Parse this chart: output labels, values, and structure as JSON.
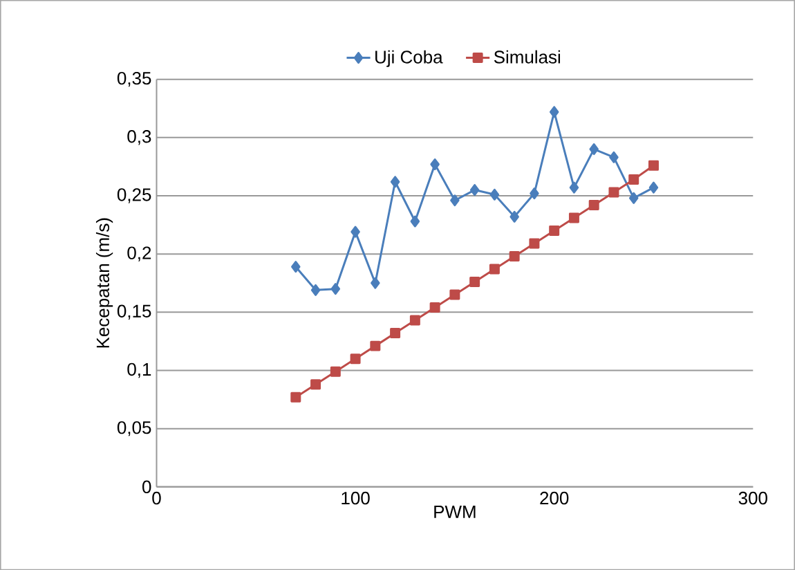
{
  "chart_data": {
    "type": "line",
    "xlabel": "PWM",
    "ylabel": "Kecepatan (m/s)",
    "xlim": [
      0,
      300
    ],
    "xticks": [
      0,
      100,
      200,
      300
    ],
    "ylim": [
      0,
      0.35
    ],
    "yticks": [
      {
        "value": 0,
        "label": "0"
      },
      {
        "value": 0.05,
        "label": "0,05"
      },
      {
        "value": 0.1,
        "label": "0,1"
      },
      {
        "value": 0.15,
        "label": "0,15"
      },
      {
        "value": 0.2,
        "label": "0,2"
      },
      {
        "value": 0.25,
        "label": "0,25"
      },
      {
        "value": 0.3,
        "label": "0,3"
      },
      {
        "value": 0.35,
        "label": "0,35"
      }
    ],
    "x": [
      70,
      80,
      90,
      100,
      110,
      120,
      130,
      140,
      150,
      160,
      170,
      180,
      190,
      200,
      210,
      220,
      230,
      240,
      250
    ],
    "grid": "y",
    "legend": "top",
    "series": [
      {
        "name": "Uji Coba",
        "color": "#4a7ebb",
        "marker": "diamond",
        "values": [
          0.189,
          0.169,
          0.17,
          0.219,
          0.175,
          0.262,
          0.228,
          0.277,
          0.246,
          0.255,
          0.251,
          0.232,
          0.252,
          0.322,
          0.257,
          0.29,
          0.283,
          0.248,
          0.257
        ]
      },
      {
        "name": "Simulasi",
        "color": "#be4b48",
        "marker": "square",
        "values": [
          0.077,
          0.088,
          0.099,
          0.11,
          0.121,
          0.132,
          0.143,
          0.154,
          0.165,
          0.176,
          0.187,
          0.198,
          0.209,
          0.22,
          0.231,
          0.242,
          0.253,
          0.264,
          0.276
        ]
      }
    ]
  }
}
